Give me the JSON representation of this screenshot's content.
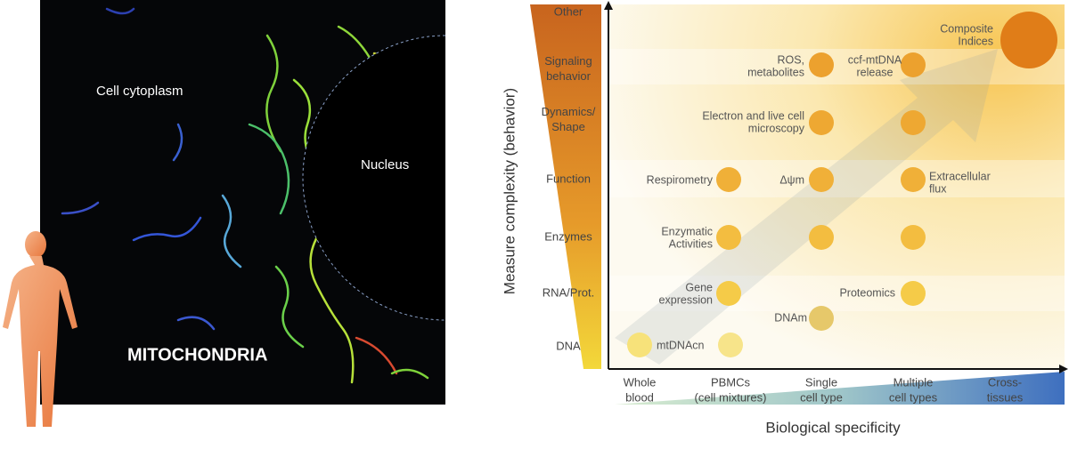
{
  "left_panel": {
    "cytoplasm": "Cell cytoplasm",
    "nucleus": "Nucleus",
    "title": "MITOCHONDRIA"
  },
  "right_panel": {
    "y_axis_title": "Measure complexity (behavior)",
    "x_axis_title": "Biological specificity",
    "rows": [
      [
        "Other"
      ],
      [
        "Signaling",
        "behavior"
      ],
      [
        "Dynamics/",
        "Shape"
      ],
      [
        "Function"
      ],
      [
        "Enzymes"
      ],
      [
        "RNA/Prot."
      ],
      [
        "DNA"
      ]
    ],
    "columns": [
      [
        "Whole",
        "blood"
      ],
      [
        "PBMCs",
        "(cell mixtures)"
      ],
      [
        "Single",
        "cell type"
      ],
      [
        "Multiple",
        "cell types"
      ],
      [
        "Cross-",
        "tissues"
      ]
    ],
    "annotations": [
      [
        "ROS,",
        "metabolites"
      ],
      [
        "ccf-mtDNA",
        "release"
      ],
      [
        "Composite",
        "Indices"
      ],
      [
        "Electron and live cell",
        "microscopy"
      ],
      [
        "Respirometry"
      ],
      [
        "Δψm"
      ],
      [
        "Extracellular",
        "flux"
      ],
      [
        "Enzymatic",
        "Activities"
      ],
      [
        "Gene",
        "expression"
      ],
      [
        "Proteomics"
      ],
      [
        "DNAm"
      ],
      [
        "mtDNAcn"
      ]
    ]
  }
}
